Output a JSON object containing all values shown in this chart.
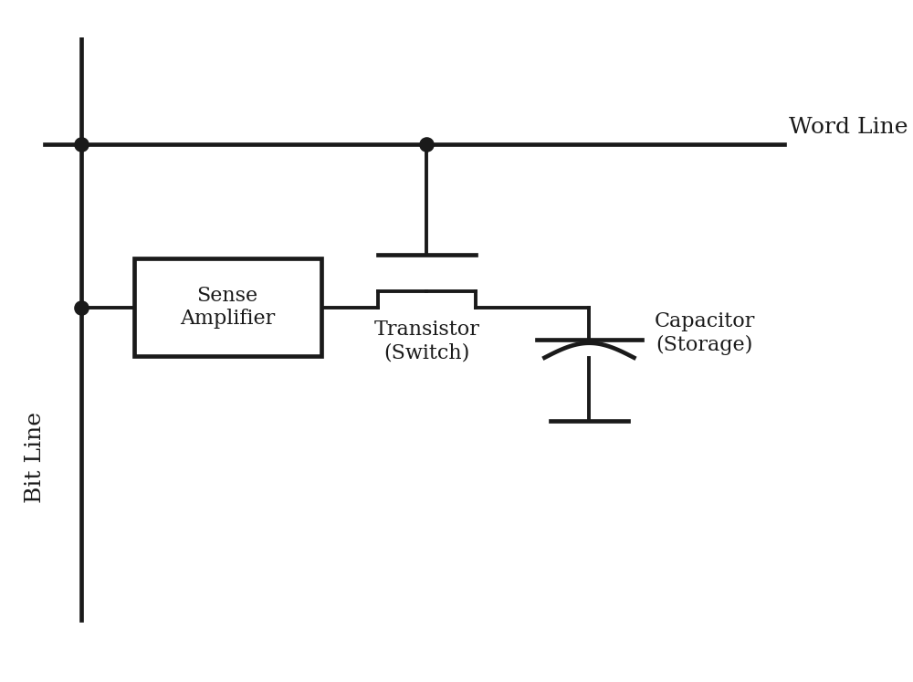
{
  "background_color": "#ffffff",
  "line_color": "#1a1a1a",
  "line_width": 2.8,
  "fig_width": 10.0,
  "fig_height": 7.47,
  "labels": {
    "word_line": "Word Line",
    "bit_line": "Bit Line",
    "sense_amp": "Sense\nAmplifier",
    "transistor": "Transistor\n(Switch)",
    "capacitor": "Capacitor\n(Storage)"
  },
  "font_size": 18,
  "label_font_size": 16,
  "junction_dot_size": 120
}
